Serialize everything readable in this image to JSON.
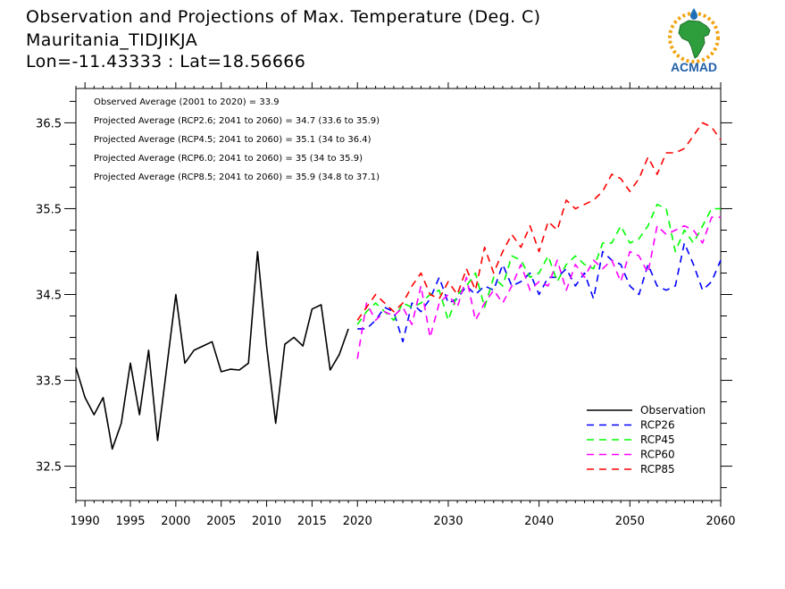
{
  "header": {
    "line1": "Observation and Projections of Max. Temperature (Deg. C)",
    "line2": "Mauritania_TIDJIKJA",
    "line3": "Lon=-11.43333 : Lat=18.56666"
  },
  "logo": {
    "text": "ACMAD",
    "icon": "acmad-africa-logo-icon"
  },
  "chart_data": {
    "type": "line",
    "title": "Observation and Projections of Max. Temperature (Deg. C)",
    "xlim": [
      1989,
      2060
    ],
    "ylim": [
      32.1,
      36.9
    ],
    "x_ticks": [
      1990,
      1995,
      2000,
      2005,
      2010,
      2015,
      2020,
      2030,
      2040,
      2050,
      2060
    ],
    "y_ticks": [
      32.5,
      33.5,
      34.5,
      35.5,
      36.5
    ],
    "y_tick_labels": [
      "32.5",
      "33.5",
      "34.5",
      "35.5",
      "36.5"
    ],
    "grid": false,
    "legend_position": "bottom-right",
    "annotations": [
      "Observed Average (2001 to 2020) = 33.9",
      "Projected Average (RCP2.6; 2041 to 2060) = 34.7 (33.6 to 35.9)",
      "Projected Average (RCP4.5; 2041 to 2060) = 35.1 (34 to 36.4)",
      "Projected Average (RCP6.0; 2041 to 2060) = 35 (34 to 35.9)",
      "Projected Average (RCP8.5; 2041 to 2060) = 35.9 (34.8 to 37.1)"
    ],
    "series": [
      {
        "name": "Observation",
        "color": "#000000",
        "dash": "solid",
        "x": [
          1989,
          1990,
          1991,
          1992,
          1993,
          1994,
          1995,
          1996,
          1997,
          1998,
          1999,
          2000,
          2001,
          2002,
          2003,
          2004,
          2005,
          2006,
          2007,
          2008,
          2009,
          2010,
          2011,
          2012,
          2013,
          2014,
          2015,
          2016,
          2017,
          2018,
          2019
        ],
        "values": [
          33.65,
          33.3,
          33.1,
          33.3,
          32.7,
          33.0,
          33.7,
          33.1,
          33.85,
          32.8,
          33.65,
          34.5,
          33.7,
          33.85,
          33.9,
          33.95,
          33.6,
          33.63,
          33.62,
          33.7,
          35.0,
          33.9,
          33.0,
          33.92,
          34.0,
          33.9,
          34.33,
          34.38,
          33.62,
          33.8,
          34.1
        ]
      },
      {
        "name": "RCP26",
        "color": "#0000ff",
        "dash": "dashed",
        "x": [
          2020,
          2021,
          2022,
          2023,
          2024,
          2025,
          2026,
          2027,
          2028,
          2029,
          2030,
          2031,
          2032,
          2033,
          2034,
          2035,
          2036,
          2037,
          2038,
          2039,
          2040,
          2041,
          2042,
          2043,
          2044,
          2045,
          2046,
          2047,
          2048,
          2049,
          2050,
          2051,
          2052,
          2053,
          2054,
          2055,
          2056,
          2057,
          2058,
          2059,
          2060
        ],
        "values": [
          34.1,
          34.1,
          34.2,
          34.35,
          34.3,
          33.95,
          34.4,
          34.3,
          34.45,
          34.7,
          34.4,
          34.45,
          34.6,
          34.5,
          34.6,
          34.55,
          34.85,
          34.6,
          34.65,
          34.75,
          34.5,
          34.7,
          34.7,
          34.8,
          34.6,
          34.75,
          34.45,
          35.0,
          34.9,
          34.85,
          34.6,
          34.5,
          34.85,
          34.6,
          34.55,
          34.6,
          35.1,
          34.85,
          34.55,
          34.65,
          34.9
        ]
      },
      {
        "name": "RCP45",
        "color": "#00ff00",
        "dash": "dashed",
        "x": [
          2020,
          2021,
          2022,
          2023,
          2024,
          2025,
          2026,
          2027,
          2028,
          2029,
          2030,
          2031,
          2032,
          2033,
          2034,
          2035,
          2036,
          2037,
          2038,
          2039,
          2040,
          2041,
          2042,
          2043,
          2044,
          2045,
          2046,
          2047,
          2048,
          2049,
          2050,
          2051,
          2052,
          2053,
          2054,
          2055,
          2056,
          2057,
          2058,
          2059,
          2060
        ],
        "values": [
          34.15,
          34.3,
          34.4,
          34.3,
          34.2,
          34.4,
          34.35,
          34.4,
          34.5,
          34.55,
          34.2,
          34.5,
          34.6,
          34.75,
          34.35,
          34.7,
          34.6,
          34.95,
          34.9,
          34.7,
          34.75,
          34.95,
          34.65,
          34.85,
          34.95,
          34.85,
          34.8,
          35.1,
          35.1,
          35.3,
          35.1,
          35.15,
          35.3,
          35.55,
          35.5,
          35.0,
          35.25,
          35.1,
          35.3,
          35.5,
          35.5
        ]
      },
      {
        "name": "RCP60",
        "color": "#ff00ff",
        "dash": "dashed",
        "x": [
          2020,
          2021,
          2022,
          2023,
          2024,
          2025,
          2026,
          2027,
          2028,
          2029,
          2030,
          2031,
          2032,
          2033,
          2034,
          2035,
          2036,
          2037,
          2038,
          2039,
          2040,
          2041,
          2042,
          2043,
          2044,
          2045,
          2046,
          2047,
          2048,
          2049,
          2050,
          2051,
          2052,
          2053,
          2054,
          2055,
          2056,
          2057,
          2058,
          2059,
          2060
        ],
        "values": [
          33.75,
          34.4,
          34.2,
          34.3,
          34.25,
          34.35,
          34.15,
          34.6,
          34.0,
          34.4,
          34.5,
          34.35,
          34.7,
          34.2,
          34.4,
          34.55,
          34.4,
          34.6,
          34.85,
          34.55,
          34.65,
          34.6,
          34.9,
          34.55,
          34.85,
          34.7,
          34.9,
          34.8,
          34.9,
          34.65,
          35.0,
          34.95,
          34.75,
          35.3,
          35.2,
          35.25,
          35.3,
          35.25,
          35.1,
          35.4,
          35.4
        ]
      },
      {
        "name": "RCP85",
        "color": "#ff0000",
        "dash": "dashed",
        "x": [
          2020,
          2021,
          2022,
          2023,
          2024,
          2025,
          2026,
          2027,
          2028,
          2029,
          2030,
          2031,
          2032,
          2033,
          2034,
          2035,
          2036,
          2037,
          2038,
          2039,
          2040,
          2041,
          2042,
          2043,
          2044,
          2045,
          2046,
          2047,
          2048,
          2049,
          2050,
          2051,
          2052,
          2053,
          2054,
          2055,
          2056,
          2057,
          2058,
          2059,
          2060
        ],
        "values": [
          34.2,
          34.35,
          34.5,
          34.4,
          34.3,
          34.4,
          34.6,
          34.75,
          34.5,
          34.45,
          34.65,
          34.5,
          34.8,
          34.55,
          35.05,
          34.75,
          35.0,
          35.2,
          35.05,
          35.3,
          35.0,
          35.35,
          35.25,
          35.6,
          35.5,
          35.55,
          35.6,
          35.7,
          35.9,
          35.85,
          35.7,
          35.85,
          36.1,
          35.9,
          36.15,
          36.15,
          36.2,
          36.35,
          36.5,
          36.45,
          36.3
        ]
      }
    ]
  }
}
